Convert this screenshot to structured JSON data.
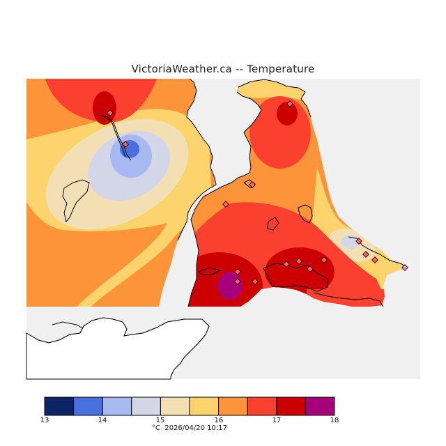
{
  "header": {
    "title": "VictoriaWeather.ca -- Temperature"
  },
  "legend": {
    "ticks": [
      "13",
      "14",
      "15",
      "16",
      "17",
      "18"
    ],
    "unit": "°C",
    "timestamp": "2026/04/20 10:17",
    "colors": [
      "#0d2566",
      "#4a6fe0",
      "#a8b8f0",
      "#d2d6e6",
      "#f2dfb4",
      "#fdd36e",
      "#fd943a",
      "#fb4030",
      "#cc0000",
      "#a8007a"
    ]
  },
  "map": {
    "background_color": "#f0f0f0",
    "station_marker_color": "#e87070"
  }
}
